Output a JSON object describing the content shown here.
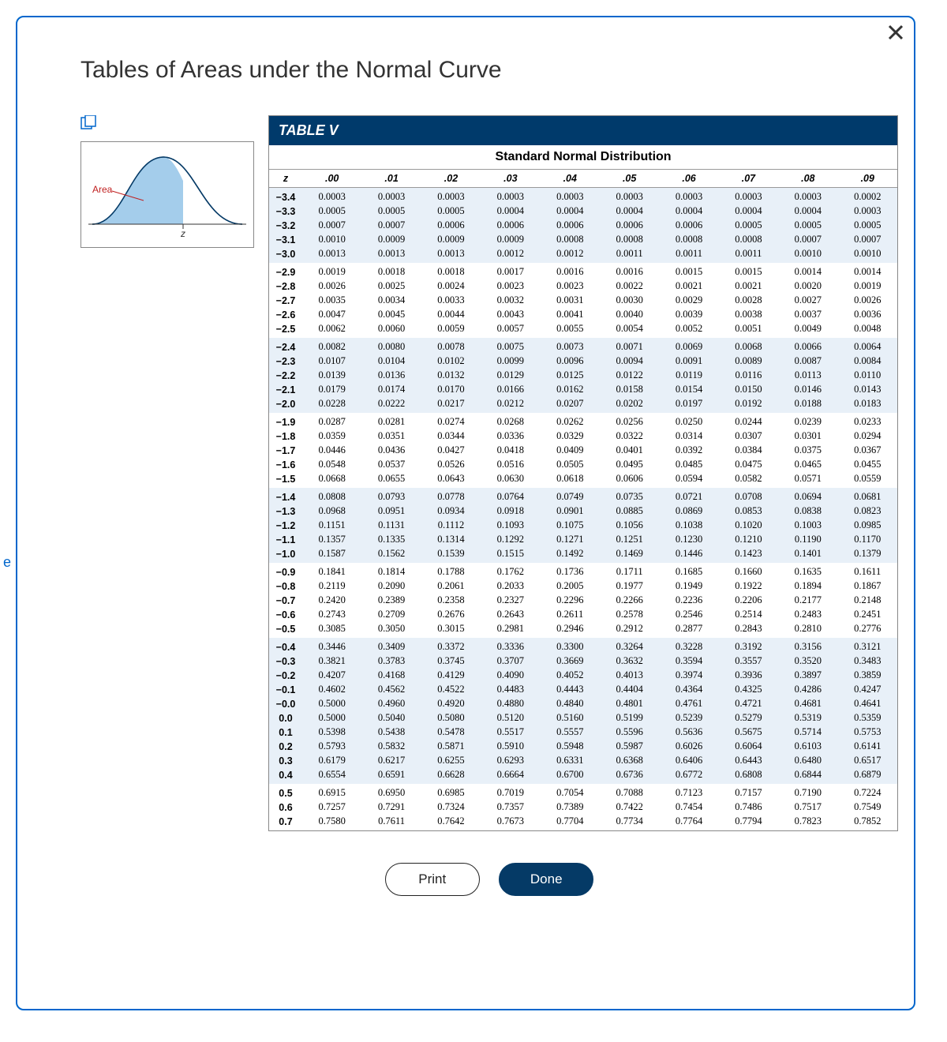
{
  "title": "Tables of Areas under the Normal Curve",
  "table": {
    "label": "TABLE V",
    "subtitle": "Standard Normal Distribution",
    "z_header": "z",
    "col_headers": [
      ".00",
      ".01",
      ".02",
      ".03",
      ".04",
      ".05",
      ".06",
      ".07",
      ".08",
      ".09"
    ],
    "groups": [
      [
        {
          "z": "−3.4",
          "v": [
            "0.0003",
            "0.0003",
            "0.0003",
            "0.0003",
            "0.0003",
            "0.0003",
            "0.0003",
            "0.0003",
            "0.0003",
            "0.0002"
          ]
        },
        {
          "z": "−3.3",
          "v": [
            "0.0005",
            "0.0005",
            "0.0005",
            "0.0004",
            "0.0004",
            "0.0004",
            "0.0004",
            "0.0004",
            "0.0004",
            "0.0003"
          ]
        },
        {
          "z": "−3.2",
          "v": [
            "0.0007",
            "0.0007",
            "0.0006",
            "0.0006",
            "0.0006",
            "0.0006",
            "0.0006",
            "0.0005",
            "0.0005",
            "0.0005"
          ]
        },
        {
          "z": "−3.1",
          "v": [
            "0.0010",
            "0.0009",
            "0.0009",
            "0.0009",
            "0.0008",
            "0.0008",
            "0.0008",
            "0.0008",
            "0.0007",
            "0.0007"
          ]
        },
        {
          "z": "−3.0",
          "v": [
            "0.0013",
            "0.0013",
            "0.0013",
            "0.0012",
            "0.0012",
            "0.0011",
            "0.0011",
            "0.0011",
            "0.0010",
            "0.0010"
          ]
        }
      ],
      [
        {
          "z": "−2.9",
          "v": [
            "0.0019",
            "0.0018",
            "0.0018",
            "0.0017",
            "0.0016",
            "0.0016",
            "0.0015",
            "0.0015",
            "0.0014",
            "0.0014"
          ]
        },
        {
          "z": "−2.8",
          "v": [
            "0.0026",
            "0.0025",
            "0.0024",
            "0.0023",
            "0.0023",
            "0.0022",
            "0.0021",
            "0.0021",
            "0.0020",
            "0.0019"
          ]
        },
        {
          "z": "−2.7",
          "v": [
            "0.0035",
            "0.0034",
            "0.0033",
            "0.0032",
            "0.0031",
            "0.0030",
            "0.0029",
            "0.0028",
            "0.0027",
            "0.0026"
          ]
        },
        {
          "z": "−2.6",
          "v": [
            "0.0047",
            "0.0045",
            "0.0044",
            "0.0043",
            "0.0041",
            "0.0040",
            "0.0039",
            "0.0038",
            "0.0037",
            "0.0036"
          ]
        },
        {
          "z": "−2.5",
          "v": [
            "0.0062",
            "0.0060",
            "0.0059",
            "0.0057",
            "0.0055",
            "0.0054",
            "0.0052",
            "0.0051",
            "0.0049",
            "0.0048"
          ]
        }
      ],
      [
        {
          "z": "−2.4",
          "v": [
            "0.0082",
            "0.0080",
            "0.0078",
            "0.0075",
            "0.0073",
            "0.0071",
            "0.0069",
            "0.0068",
            "0.0066",
            "0.0064"
          ]
        },
        {
          "z": "−2.3",
          "v": [
            "0.0107",
            "0.0104",
            "0.0102",
            "0.0099",
            "0.0096",
            "0.0094",
            "0.0091",
            "0.0089",
            "0.0087",
            "0.0084"
          ]
        },
        {
          "z": "−2.2",
          "v": [
            "0.0139",
            "0.0136",
            "0.0132",
            "0.0129",
            "0.0125",
            "0.0122",
            "0.0119",
            "0.0116",
            "0.0113",
            "0.0110"
          ]
        },
        {
          "z": "−2.1",
          "v": [
            "0.0179",
            "0.0174",
            "0.0170",
            "0.0166",
            "0.0162",
            "0.0158",
            "0.0154",
            "0.0150",
            "0.0146",
            "0.0143"
          ]
        },
        {
          "z": "−2.0",
          "v": [
            "0.0228",
            "0.0222",
            "0.0217",
            "0.0212",
            "0.0207",
            "0.0202",
            "0.0197",
            "0.0192",
            "0.0188",
            "0.0183"
          ]
        }
      ],
      [
        {
          "z": "−1.9",
          "v": [
            "0.0287",
            "0.0281",
            "0.0274",
            "0.0268",
            "0.0262",
            "0.0256",
            "0.0250",
            "0.0244",
            "0.0239",
            "0.0233"
          ]
        },
        {
          "z": "−1.8",
          "v": [
            "0.0359",
            "0.0351",
            "0.0344",
            "0.0336",
            "0.0329",
            "0.0322",
            "0.0314",
            "0.0307",
            "0.0301",
            "0.0294"
          ]
        },
        {
          "z": "−1.7",
          "v": [
            "0.0446",
            "0.0436",
            "0.0427",
            "0.0418",
            "0.0409",
            "0.0401",
            "0.0392",
            "0.0384",
            "0.0375",
            "0.0367"
          ]
        },
        {
          "z": "−1.6",
          "v": [
            "0.0548",
            "0.0537",
            "0.0526",
            "0.0516",
            "0.0505",
            "0.0495",
            "0.0485",
            "0.0475",
            "0.0465",
            "0.0455"
          ]
        },
        {
          "z": "−1.5",
          "v": [
            "0.0668",
            "0.0655",
            "0.0643",
            "0.0630",
            "0.0618",
            "0.0606",
            "0.0594",
            "0.0582",
            "0.0571",
            "0.0559"
          ]
        }
      ],
      [
        {
          "z": "−1.4",
          "v": [
            "0.0808",
            "0.0793",
            "0.0778",
            "0.0764",
            "0.0749",
            "0.0735",
            "0.0721",
            "0.0708",
            "0.0694",
            "0.0681"
          ]
        },
        {
          "z": "−1.3",
          "v": [
            "0.0968",
            "0.0951",
            "0.0934",
            "0.0918",
            "0.0901",
            "0.0885",
            "0.0869",
            "0.0853",
            "0.0838",
            "0.0823"
          ]
        },
        {
          "z": "−1.2",
          "v": [
            "0.1151",
            "0.1131",
            "0.1112",
            "0.1093",
            "0.1075",
            "0.1056",
            "0.1038",
            "0.1020",
            "0.1003",
            "0.0985"
          ]
        },
        {
          "z": "−1.1",
          "v": [
            "0.1357",
            "0.1335",
            "0.1314",
            "0.1292",
            "0.1271",
            "0.1251",
            "0.1230",
            "0.1210",
            "0.1190",
            "0.1170"
          ]
        },
        {
          "z": "−1.0",
          "v": [
            "0.1587",
            "0.1562",
            "0.1539",
            "0.1515",
            "0.1492",
            "0.1469",
            "0.1446",
            "0.1423",
            "0.1401",
            "0.1379"
          ]
        }
      ],
      [
        {
          "z": "−0.9",
          "v": [
            "0.1841",
            "0.1814",
            "0.1788",
            "0.1762",
            "0.1736",
            "0.1711",
            "0.1685",
            "0.1660",
            "0.1635",
            "0.1611"
          ]
        },
        {
          "z": "−0.8",
          "v": [
            "0.2119",
            "0.2090",
            "0.2061",
            "0.2033",
            "0.2005",
            "0.1977",
            "0.1949",
            "0.1922",
            "0.1894",
            "0.1867"
          ]
        },
        {
          "z": "−0.7",
          "v": [
            "0.2420",
            "0.2389",
            "0.2358",
            "0.2327",
            "0.2296",
            "0.2266",
            "0.2236",
            "0.2206",
            "0.2177",
            "0.2148"
          ]
        },
        {
          "z": "−0.6",
          "v": [
            "0.2743",
            "0.2709",
            "0.2676",
            "0.2643",
            "0.2611",
            "0.2578",
            "0.2546",
            "0.2514",
            "0.2483",
            "0.2451"
          ]
        },
        {
          "z": "−0.5",
          "v": [
            "0.3085",
            "0.3050",
            "0.3015",
            "0.2981",
            "0.2946",
            "0.2912",
            "0.2877",
            "0.2843",
            "0.2810",
            "0.2776"
          ]
        }
      ],
      [
        {
          "z": "−0.4",
          "v": [
            "0.3446",
            "0.3409",
            "0.3372",
            "0.3336",
            "0.3300",
            "0.3264",
            "0.3228",
            "0.3192",
            "0.3156",
            "0.3121"
          ]
        },
        {
          "z": "−0.3",
          "v": [
            "0.3821",
            "0.3783",
            "0.3745",
            "0.3707",
            "0.3669",
            "0.3632",
            "0.3594",
            "0.3557",
            "0.3520",
            "0.3483"
          ]
        },
        {
          "z": "−0.2",
          "v": [
            "0.4207",
            "0.4168",
            "0.4129",
            "0.4090",
            "0.4052",
            "0.4013",
            "0.3974",
            "0.3936",
            "0.3897",
            "0.3859"
          ]
        },
        {
          "z": "−0.1",
          "v": [
            "0.4602",
            "0.4562",
            "0.4522",
            "0.4483",
            "0.4443",
            "0.4404",
            "0.4364",
            "0.4325",
            "0.4286",
            "0.4247"
          ]
        },
        {
          "z": "−0.0",
          "v": [
            "0.5000",
            "0.4960",
            "0.4920",
            "0.4880",
            "0.4840",
            "0.4801",
            "0.4761",
            "0.4721",
            "0.4681",
            "0.4641"
          ]
        },
        {
          "z": "0.0",
          "v": [
            "0.5000",
            "0.5040",
            "0.5080",
            "0.5120",
            "0.5160",
            "0.5199",
            "0.5239",
            "0.5279",
            "0.5319",
            "0.5359"
          ]
        },
        {
          "z": "0.1",
          "v": [
            "0.5398",
            "0.5438",
            "0.5478",
            "0.5517",
            "0.5557",
            "0.5596",
            "0.5636",
            "0.5675",
            "0.5714",
            "0.5753"
          ]
        },
        {
          "z": "0.2",
          "v": [
            "0.5793",
            "0.5832",
            "0.5871",
            "0.5910",
            "0.5948",
            "0.5987",
            "0.6026",
            "0.6064",
            "0.6103",
            "0.6141"
          ]
        },
        {
          "z": "0.3",
          "v": [
            "0.6179",
            "0.6217",
            "0.6255",
            "0.6293",
            "0.6331",
            "0.6368",
            "0.6406",
            "0.6443",
            "0.6480",
            "0.6517"
          ]
        },
        {
          "z": "0.4",
          "v": [
            "0.6554",
            "0.6591",
            "0.6628",
            "0.6664",
            "0.6700",
            "0.6736",
            "0.6772",
            "0.6808",
            "0.6844",
            "0.6879"
          ]
        }
      ],
      [
        {
          "z": "0.5",
          "v": [
            "0.6915",
            "0.6950",
            "0.6985",
            "0.7019",
            "0.7054",
            "0.7088",
            "0.7123",
            "0.7157",
            "0.7190",
            "0.7224"
          ]
        },
        {
          "z": "0.6",
          "v": [
            "0.7257",
            "0.7291",
            "0.7324",
            "0.7357",
            "0.7389",
            "0.7422",
            "0.7454",
            "0.7486",
            "0.7517",
            "0.7549"
          ]
        },
        {
          "z": "0.7",
          "v": [
            "0.7580",
            "0.7611",
            "0.7642",
            "0.7673",
            "0.7704",
            "0.7734",
            "0.7764",
            "0.7794",
            "0.7823",
            "0.7852"
          ]
        }
      ]
    ]
  },
  "curve": {
    "area_label": "Area",
    "z_label": "z",
    "colors": {
      "fill": "#94c4e8",
      "line": "#053a66",
      "label": "#c02020"
    }
  },
  "buttons": {
    "print": "Print",
    "done": "Done"
  },
  "side_char": "e"
}
